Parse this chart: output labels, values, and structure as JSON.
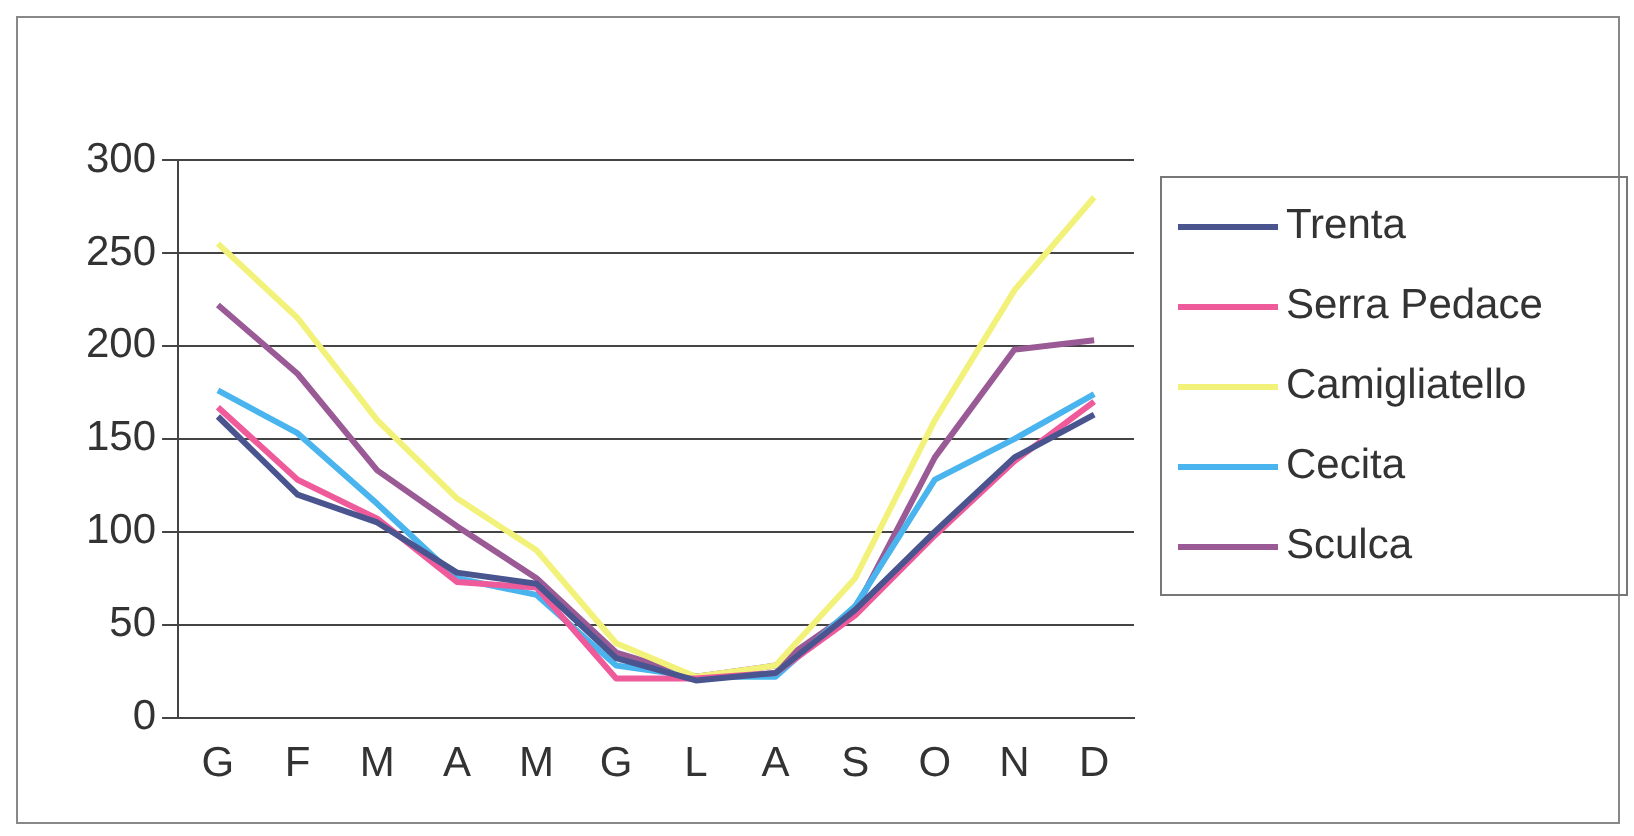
{
  "chart_data": {
    "type": "line",
    "categories": [
      "G",
      "F",
      "M",
      "A",
      "M",
      "G",
      "L",
      "A",
      "S",
      "O",
      "N",
      "D"
    ],
    "series": [
      {
        "name": "Trenta",
        "color": "#4a5590",
        "values": [
          162,
          120,
          105,
          78,
          72,
          32,
          20,
          24,
          58,
          100,
          140,
          163
        ]
      },
      {
        "name": "Serra Pedace",
        "color": "#ee5a9a",
        "values": [
          167,
          128,
          107,
          73,
          70,
          21,
          21,
          24,
          55,
          98,
          138,
          170
        ]
      },
      {
        "name": "Camigliatello",
        "color": "#f2f27a",
        "values": [
          255,
          215,
          160,
          118,
          90,
          40,
          22,
          28,
          75,
          160,
          230,
          280
        ]
      },
      {
        "name": "Cecita",
        "color": "#4ab4ee",
        "values": [
          176,
          153,
          115,
          75,
          66,
          28,
          22,
          22,
          60,
          128,
          150,
          174
        ]
      },
      {
        "name": "Sculca",
        "color": "#9a5a96",
        "values": [
          222,
          185,
          133,
          103,
          75,
          35,
          22,
          28,
          58,
          140,
          198,
          203
        ]
      }
    ],
    "ylim": [
      0,
      300
    ],
    "yticks": [
      0,
      50,
      100,
      150,
      200,
      250,
      300
    ],
    "grid": "y",
    "legend": "right",
    "marker": "none",
    "line_style": "solid"
  }
}
